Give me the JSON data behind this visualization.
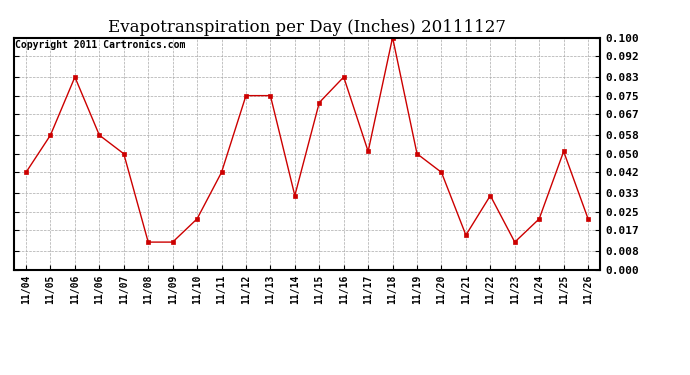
{
  "title": "Evapotranspiration per Day (Inches) 20111127",
  "copyright": "Copyright 2011 Cartronics.com",
  "x_labels": [
    "11/04",
    "11/05",
    "11/06",
    "11/06",
    "11/07",
    "11/08",
    "11/09",
    "11/10",
    "11/11",
    "11/12",
    "11/13",
    "11/14",
    "11/15",
    "11/16",
    "11/17",
    "11/18",
    "11/19",
    "11/20",
    "11/21",
    "11/22",
    "11/23",
    "11/24",
    "11/25",
    "11/26"
  ],
  "y_values": [
    0.042,
    0.058,
    0.083,
    0.058,
    0.05,
    0.012,
    0.012,
    0.022,
    0.042,
    0.075,
    0.075,
    0.032,
    0.072,
    0.083,
    0.051,
    0.1,
    0.05,
    0.042,
    0.015,
    0.032,
    0.012,
    0.022,
    0.051,
    0.022
  ],
  "line_color": "#cc0000",
  "marker": "s",
  "marker_size": 3,
  "y_ticks": [
    0.0,
    0.008,
    0.017,
    0.025,
    0.033,
    0.042,
    0.05,
    0.058,
    0.067,
    0.075,
    0.083,
    0.092,
    0.1
  ],
  "ylim": [
    0.0,
    0.1
  ],
  "background_color": "#ffffff",
  "grid_color": "#aaaaaa",
  "title_fontsize": 12,
  "copyright_fontsize": 7,
  "tick_fontsize": 8,
  "xlabel_fontsize": 7
}
